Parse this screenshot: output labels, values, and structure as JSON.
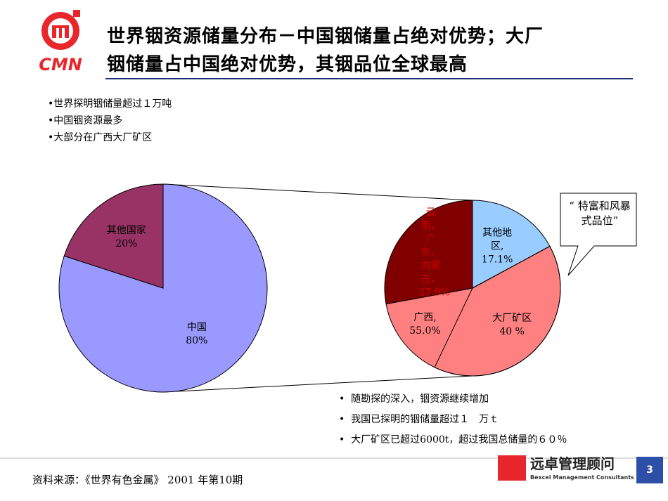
{
  "header": {
    "logo": "CMN",
    "title": [
      "世界铟资源储量分布－中国铟储量占绝对优势；大厂",
      "铟储量占中国绝对优势，其铟品位全球最高"
    ]
  },
  "bullets_top": [
    "•世界探明铟储量超过１万吨",
    "•中国铟资源最多",
    "•大部分在广西大厂矿区"
  ],
  "callout": "“ 特富和风暴式品位”",
  "bullets_bottom": [
    "随勘探的深入，铟资源继续增加",
    "我国已探明的铟储量超过１　万ｔ",
    "大厂矿区已超过6000t，超过我国总储量的６０％"
  ],
  "source": "资料来源：《世界有色金属》 2001 年第10期",
  "footer": {
    "brand": "远卓管理顾问",
    "brand_en": "Bexcel Management Consultants",
    "page": "3"
  },
  "chart_data": [
    {
      "type": "pie",
      "categories": [
        "中国",
        "其他国家"
      ],
      "values": [
        80,
        20
      ],
      "value_labels": [
        "80%",
        "20%"
      ],
      "colors": [
        "#9999ff",
        "#993366"
      ]
    },
    {
      "type": "pie",
      "categories": [
        "其他地区,",
        "广西,",
        "云南，广东，内蒙古，"
      ],
      "values": [
        17.1,
        55.0,
        27.9
      ],
      "value_labels": [
        "17.1%",
        "55.0%",
        "27.9%"
      ],
      "colors": [
        "#99ccff",
        "#ff8080",
        "#800000"
      ],
      "sub_slice": {
        "label": "大厂矿区",
        "value": 40,
        "value_label": "40 %"
      }
    }
  ]
}
